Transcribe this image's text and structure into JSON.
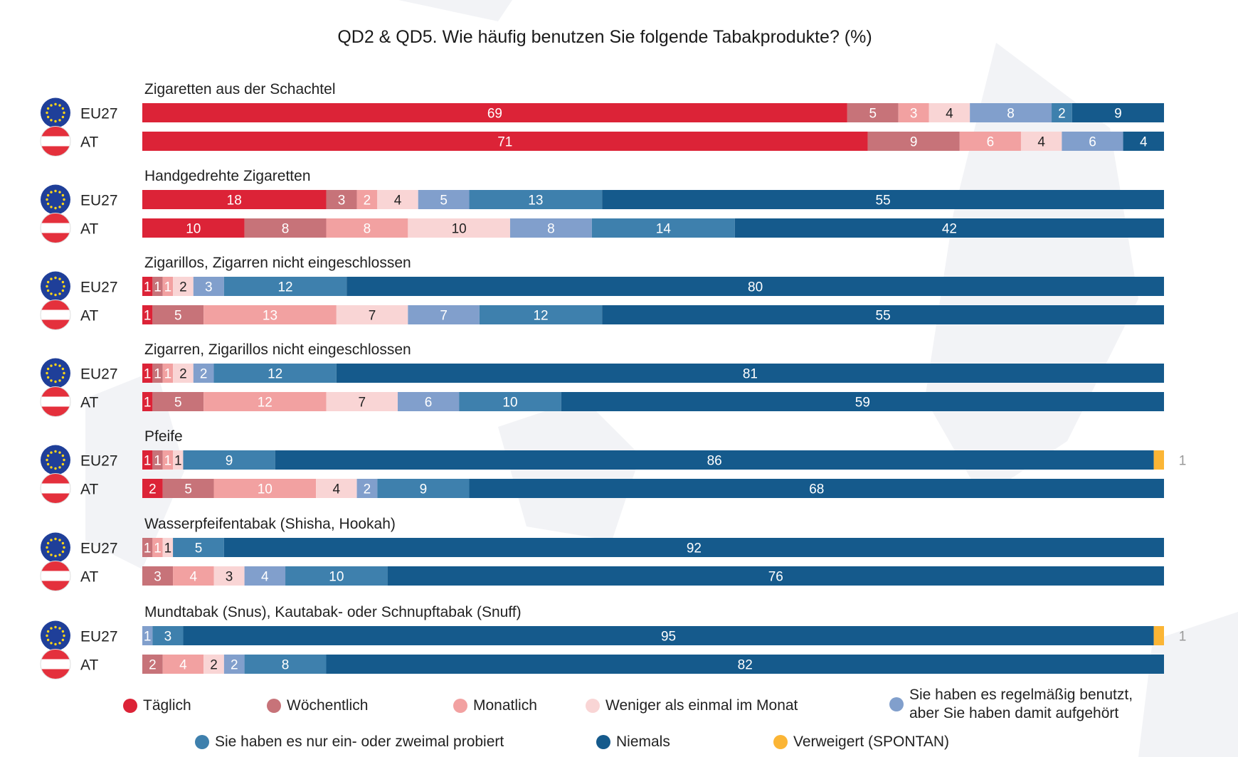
{
  "title": "QD2 & QD5. Wie häufig benutzen Sie folgende Tabakprodukte? (%)",
  "colors": {
    "taeglich": "#dc2337",
    "woechentlich": "#c77379",
    "monatlich": "#f2a1a1",
    "weniger": "#f9d5d5",
    "aufgehoert": "#819fcc",
    "probiert": "#3e80ad",
    "niemals": "#155a8c",
    "verweigert": "#fbb535",
    "eu_flag": "#1f3f99",
    "eu_star": "#ffd617",
    "at_red": "#e4303c"
  },
  "legend": [
    {
      "key": "taeglich",
      "label": "Täglich"
    },
    {
      "key": "woechentlich",
      "label": "Wöchentlich"
    },
    {
      "key": "monatlich",
      "label": "Monatlich"
    },
    {
      "key": "weniger",
      "label": "Weniger als einmal im Monat"
    },
    {
      "key": "aufgehoert",
      "label": "Sie haben es regelmäßig benutzt,\naber Sie haben damit aufgehört"
    },
    {
      "key": "probiert",
      "label": "Sie haben es nur ein- oder zweimal probiert"
    },
    {
      "key": "niemals",
      "label": "Niemals"
    },
    {
      "key": "verweigert",
      "label": "Verweigert (SPONTAN)"
    }
  ],
  "chart_data": {
    "type": "bar",
    "orientation": "horizontal",
    "stacked": true,
    "title": "QD2 & QD5. Wie häufig benutzen Sie folgende Tabakprodukte? (%)",
    "series_names": [
      "Täglich",
      "Wöchentlich",
      "Monatlich",
      "Weniger als einmal im Monat",
      "Sie haben es regelmäßig benutzt, aber Sie haben damit aufgehört",
      "Sie haben es nur ein- oder zweimal probiert",
      "Niemals",
      "Verweigert (SPONTAN)"
    ],
    "groups": [
      {
        "product": "Zigaretten aus der Schachtel",
        "rows": [
          {
            "label": "EU27",
            "values": [
              69,
              5,
              3,
              4,
              8,
              2,
              9,
              0
            ]
          },
          {
            "label": "AT",
            "values": [
              71,
              9,
              6,
              4,
              6,
              0,
              4,
              0
            ]
          }
        ]
      },
      {
        "product": "Handgedrehte Zigaretten",
        "rows": [
          {
            "label": "EU27",
            "values": [
              18,
              3,
              2,
              4,
              5,
              13,
              55,
              0
            ]
          },
          {
            "label": "AT",
            "values": [
              10,
              8,
              8,
              10,
              8,
              14,
              42,
              0
            ]
          }
        ]
      },
      {
        "product": "Zigarillos, Zigarren nicht eingeschlossen",
        "rows": [
          {
            "label": "EU27",
            "values": [
              1,
              1,
              1,
              2,
              3,
              12,
              80,
              0
            ]
          },
          {
            "label": "AT",
            "values": [
              1,
              5,
              13,
              7,
              7,
              12,
              55,
              0
            ]
          }
        ]
      },
      {
        "product": "Zigarren, Zigarillos nicht eingeschlossen",
        "rows": [
          {
            "label": "EU27",
            "values": [
              1,
              1,
              1,
              2,
              2,
              12,
              81,
              0
            ]
          },
          {
            "label": "AT",
            "values": [
              1,
              5,
              12,
              7,
              6,
              10,
              59,
              0
            ]
          }
        ]
      },
      {
        "product": "Pfeife",
        "rows": [
          {
            "label": "EU27",
            "values": [
              1,
              1,
              1,
              1,
              0,
              9,
              86,
              1
            ]
          },
          {
            "label": "AT",
            "values": [
              2,
              5,
              10,
              4,
              2,
              9,
              68,
              0
            ]
          }
        ]
      },
      {
        "product": "Wasserpfeifentabak (Shisha, Hookah)",
        "rows": [
          {
            "label": "EU27",
            "values": [
              0,
              1,
              1,
              1,
              0,
              5,
              92,
              0
            ]
          },
          {
            "label": "AT",
            "values": [
              0,
              3,
              4,
              3,
              4,
              10,
              76,
              0
            ]
          }
        ]
      },
      {
        "product": "Mundtabak (Snus), Kautabak- oder Schnupftabak (Snuff)",
        "rows": [
          {
            "label": "EU27",
            "values": [
              0,
              0,
              0,
              0,
              1,
              3,
              95,
              1
            ]
          },
          {
            "label": "AT",
            "values": [
              0,
              2,
              4,
              2,
              2,
              8,
              82,
              0
            ]
          }
        ]
      }
    ],
    "grid": false,
    "legend_position": "bottom"
  }
}
